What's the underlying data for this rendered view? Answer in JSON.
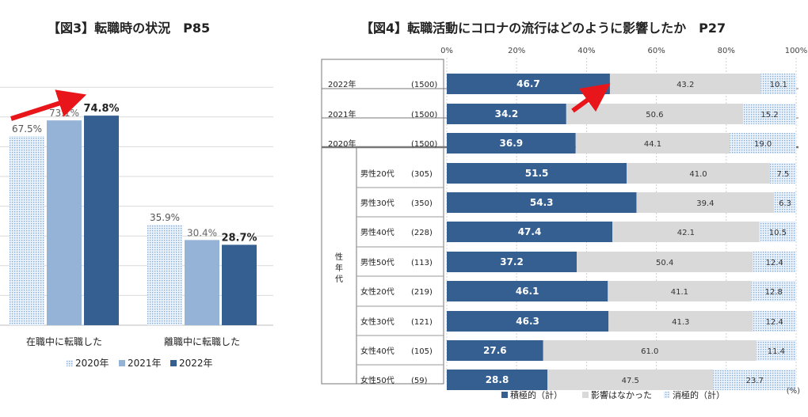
{
  "fig3": {
    "title": "【図3】転職時の状況　P85",
    "legend": [
      "2020年",
      "2021年",
      "2022年"
    ],
    "colors": [
      "#c9dcf0",
      "#95b3d7",
      "#355f91"
    ]
  },
  "fig4": {
    "title": "【図4】転職活動にコロナの流行はどのように影響したか　P27",
    "group_label": "性年代",
    "unit": "(%)",
    "axis_ticks": [
      "0%",
      "20%",
      "40%",
      "60%",
      "80%",
      "100%"
    ],
    "legend": [
      "積極的（計）",
      "影響はなかった",
      "消極的（計）"
    ],
    "colors": [
      "#355f91",
      "#d9d9d9",
      "#c9dcf0"
    ]
  },
  "chart_data": [
    {
      "type": "bar",
      "title": "【図3】転職時の状況　P85",
      "categories": [
        "在職中に転職した",
        "離職中に転職した"
      ],
      "series": [
        {
          "name": "2020年",
          "values": [
            67.5,
            35.9
          ]
        },
        {
          "name": "2021年",
          "values": [
            73.1,
            30.4
          ]
        },
        {
          "name": "2022年",
          "values": [
            74.8,
            28.7
          ]
        }
      ],
      "value_labels": [
        [
          "67.5%",
          "35.9%"
        ],
        [
          "73.1%",
          "30.4%"
        ],
        [
          "74.8%",
          "28.7%"
        ]
      ],
      "ylim": [
        0,
        85
      ],
      "grid": true,
      "legend_position": "bottom"
    },
    {
      "type": "bar",
      "orientation": "horizontal",
      "stacked": true,
      "title": "【図4】転職活動にコロナの流行はどのように影響したか　P27",
      "rows": [
        {
          "label": "2022年",
          "n": "(1500)",
          "values": [
            46.7,
            43.2,
            10.1
          ]
        },
        {
          "label": "2021年",
          "n": "(1500)",
          "values": [
            34.2,
            50.6,
            15.2
          ]
        },
        {
          "label": "2020年",
          "n": "(1500)",
          "values": [
            36.9,
            44.1,
            19.0
          ]
        },
        {
          "label": "男性20代",
          "n": "(305)",
          "values": [
            51.5,
            41.0,
            7.5
          ]
        },
        {
          "label": "男性30代",
          "n": "(350)",
          "values": [
            54.3,
            39.4,
            6.3
          ]
        },
        {
          "label": "男性40代",
          "n": "(228)",
          "values": [
            47.4,
            42.1,
            10.5
          ]
        },
        {
          "label": "男性50代",
          "n": "(113)",
          "values": [
            37.2,
            50.4,
            12.4
          ]
        },
        {
          "label": "女性20代",
          "n": "(219)",
          "values": [
            46.1,
            41.1,
            12.8
          ]
        },
        {
          "label": "女性30代",
          "n": "(121)",
          "values": [
            46.3,
            41.3,
            12.4
          ]
        },
        {
          "label": "女性40代",
          "n": "(105)",
          "values": [
            27.6,
            61.0,
            11.4
          ]
        },
        {
          "label": "女性50代",
          "n": "(59)",
          "values": [
            28.8,
            47.5,
            23.7
          ]
        }
      ],
      "series_names": [
        "積極的（計）",
        "影響はなかった",
        "消極的（計）"
      ],
      "xlim": [
        0,
        100
      ],
      "grid": true,
      "legend_position": "bottom"
    }
  ]
}
